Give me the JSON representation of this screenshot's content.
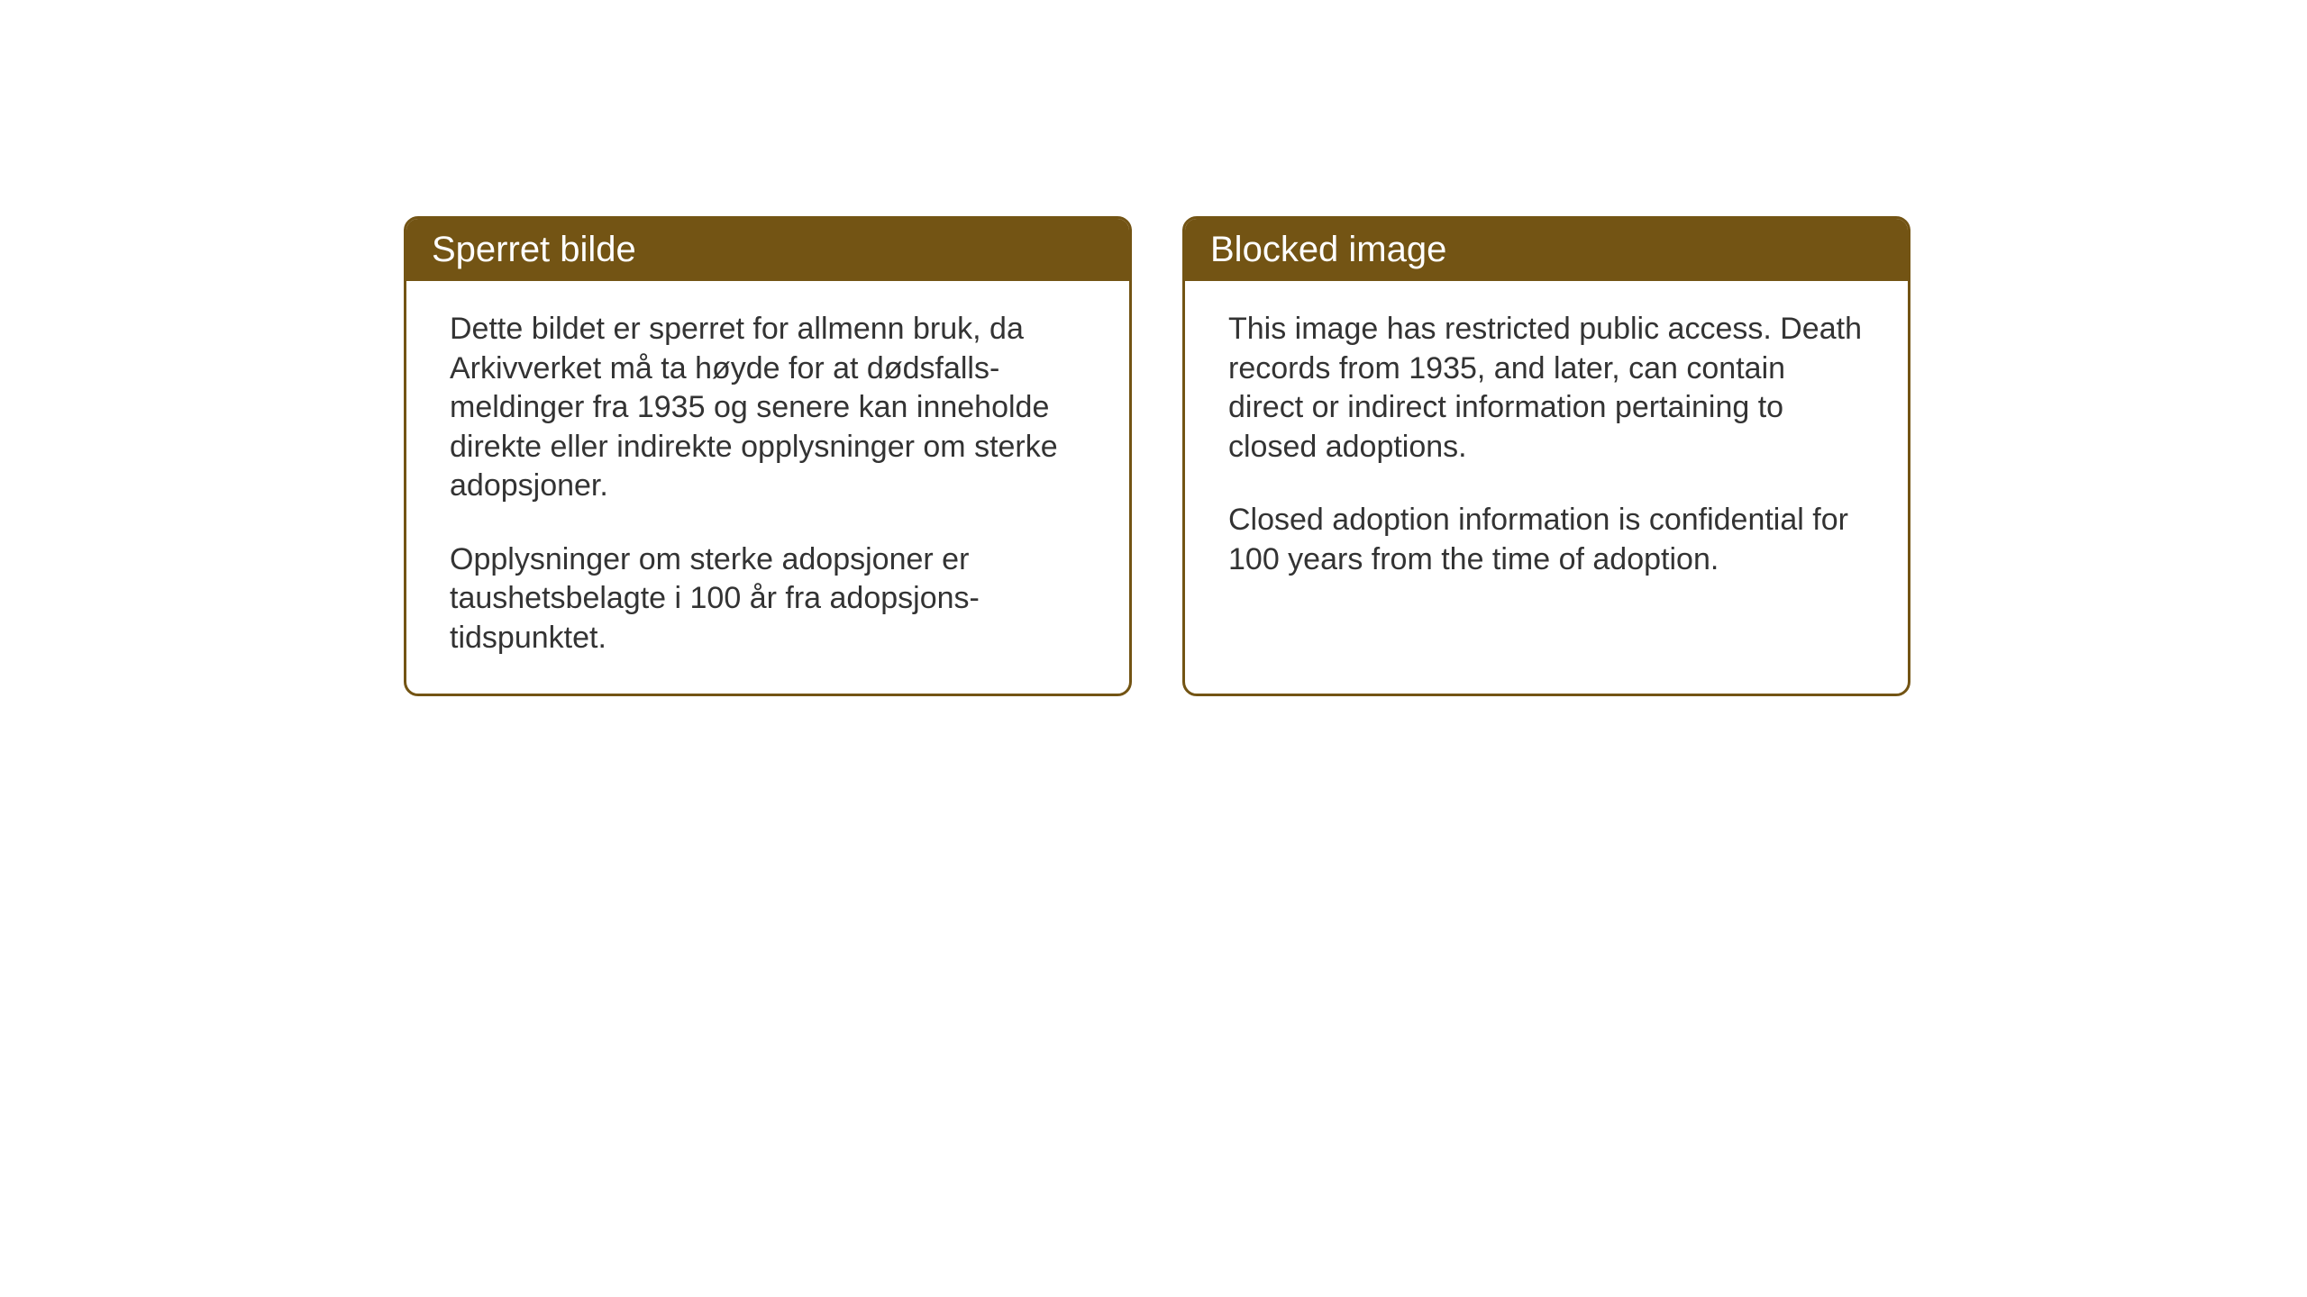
{
  "layout": {
    "background_color": "#ffffff",
    "card_border_color": "#735414",
    "card_header_bg": "#735414",
    "card_header_text_color": "#ffffff",
    "card_body_text_color": "#333333",
    "card_border_radius": 16,
    "card_border_width": 3,
    "header_fontsize": 40,
    "body_fontsize": 34
  },
  "cards": {
    "norwegian": {
      "title": "Sperret bilde",
      "paragraph1": "Dette bildet er sperret for allmenn bruk, da Arkivverket må ta høyde for at dødsfalls-meldinger fra 1935 og senere kan inneholde direkte eller indirekte opplysninger om sterke adopsjoner.",
      "paragraph2": "Opplysninger om sterke adopsjoner er taushetsbelagte i 100 år fra adopsjons-tidspunktet."
    },
    "english": {
      "title": "Blocked image",
      "paragraph1": "This image has restricted public access. Death records from 1935, and later, can contain direct or indirect information pertaining to closed adoptions.",
      "paragraph2": "Closed adoption information is confidential for 100 years from the time of adoption."
    }
  }
}
